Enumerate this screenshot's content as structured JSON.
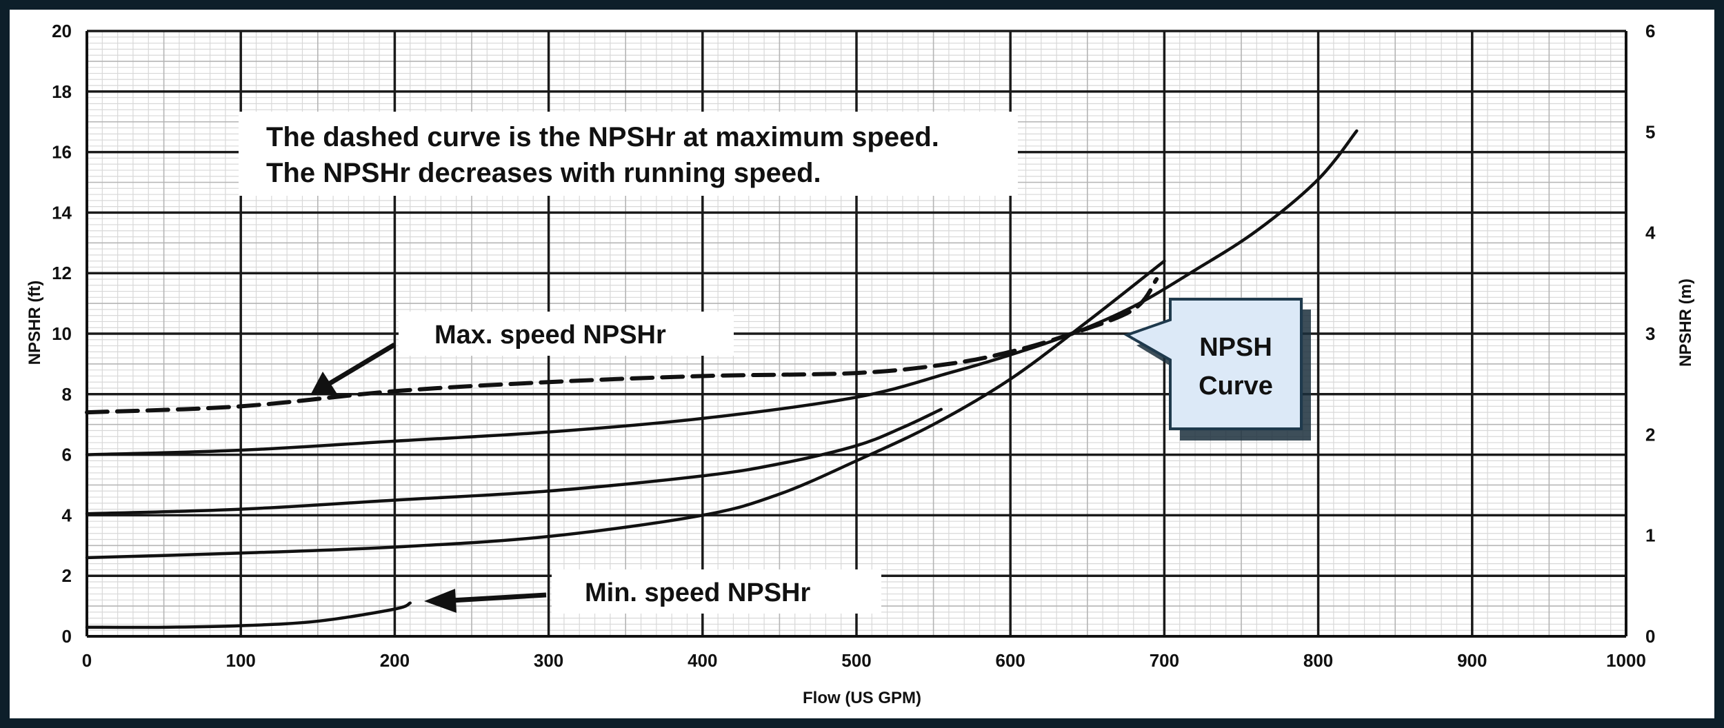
{
  "chart_data": {
    "type": "line",
    "xlabel": "Flow (US GPM)",
    "ylabel": "NPSHR (ft)",
    "y2label": "NPSHR (m)",
    "xlim": [
      0,
      1000
    ],
    "ylim": [
      0,
      20
    ],
    "y2lim": [
      0,
      6
    ],
    "grid": true,
    "x_ticks": [
      "0",
      "100",
      "200",
      "300",
      "400",
      "500",
      "600",
      "700",
      "800",
      "900",
      "1000"
    ],
    "y_ticks": [
      "0",
      "2",
      "4",
      "6",
      "8",
      "10",
      "12",
      "14",
      "16",
      "18",
      "20"
    ],
    "y2_ticks": [
      "0",
      "1",
      "2",
      "3",
      "4",
      "5",
      "6"
    ],
    "series": [
      {
        "style": "dashed",
        "x": [
          0,
          100,
          200,
          300,
          400,
          500,
          560,
          600,
          640,
          680,
          695
        ],
        "y": [
          7.4,
          7.6,
          8.1,
          8.4,
          8.6,
          8.7,
          9.0,
          9.4,
          10.0,
          10.8,
          11.8
        ]
      },
      {
        "style": "solid",
        "x": [
          0,
          100,
          200,
          300,
          400,
          500,
          560,
          600,
          640,
          680,
          720,
          760,
          800,
          825
        ],
        "y": [
          6.0,
          6.15,
          6.45,
          6.75,
          7.2,
          7.9,
          8.7,
          9.3,
          10.0,
          10.9,
          12.1,
          13.4,
          15.1,
          16.7
        ]
      },
      {
        "style": "solid",
        "x": [
          0,
          100,
          200,
          300,
          400,
          450,
          500,
          530,
          555
        ],
        "y": [
          4.05,
          4.2,
          4.5,
          4.8,
          5.3,
          5.7,
          6.3,
          6.9,
          7.5
        ]
      },
      {
        "style": "solid",
        "x": [
          0,
          100,
          200,
          300,
          400,
          450,
          500,
          550,
          600,
          650,
          700
        ],
        "y": [
          2.6,
          2.75,
          2.95,
          3.3,
          4.0,
          4.7,
          5.8,
          7.0,
          8.5,
          10.4,
          12.4
        ]
      },
      {
        "style": "solid",
        "x": [
          0,
          50,
          100,
          150,
          200,
          210
        ],
        "y": [
          0.3,
          0.3,
          0.35,
          0.5,
          0.9,
          1.1
        ]
      }
    ],
    "annotations": {
      "note_line1": "The dashed curve is the NPSHr at maximum speed.",
      "note_line2": "The NPSHr decreases with running speed.",
      "max_label": "Max. speed NPSHr",
      "min_label": "Min. speed NPSHr",
      "callout_line1": "NPSH",
      "callout_line2": "Curve"
    },
    "colors": {
      "curve": "#111111",
      "callout_fill": "#dce9f7",
      "callout_border": "#1f3a4d",
      "frame": "#0d1f2a"
    }
  }
}
